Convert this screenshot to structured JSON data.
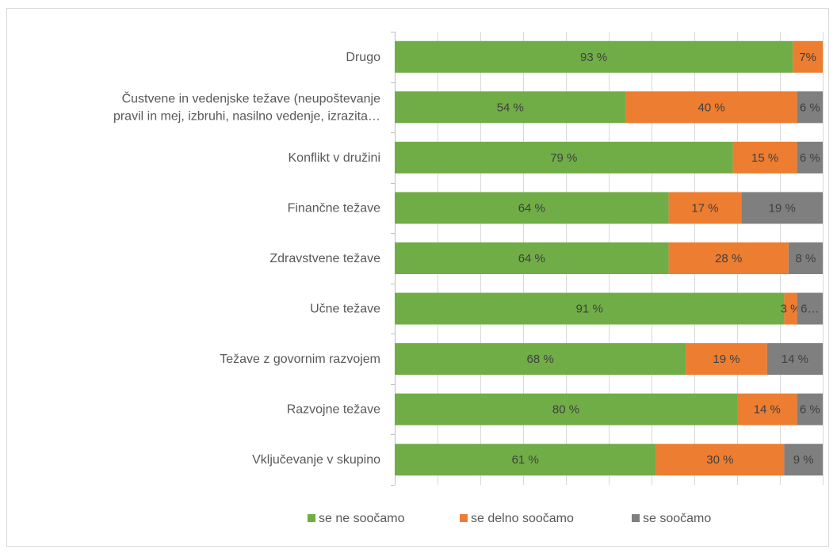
{
  "chart_data": {
    "type": "bar",
    "orientation": "horizontal",
    "stacked": "percent",
    "categories": [
      "Drugo",
      "Čustvene in vedenjske težave (neupoštevanje pravil in mej, izbruhi, nasilno vedenje, izrazita…",
      "Konflikt v družini",
      "Finančne težave",
      "Zdravstvene težave",
      "Učne težave",
      "Težave z govornim razvojem",
      "Razvojne težave",
      "Vključevanje v skupino"
    ],
    "category_lines": [
      [
        "Drugo"
      ],
      [
        "Čustvene in vedenjske težave (neupoštevanje",
        "pravil in mej, izbruhi, nasilno vedenje, izrazita…"
      ],
      [
        "Konflikt v družini"
      ],
      [
        "Finančne težave"
      ],
      [
        "Zdravstvene težave"
      ],
      [
        "Učne težave"
      ],
      [
        "Težave z govornim razvojem"
      ],
      [
        "Razvojne težave"
      ],
      [
        "Vključevanje v skupino"
      ]
    ],
    "series": [
      {
        "name": "se ne soočamo",
        "color": "#70ad47",
        "values": [
          93,
          54,
          79,
          64,
          64,
          91,
          68,
          80,
          61
        ],
        "labels": [
          "93 %",
          "54 %",
          "79 %",
          "64 %",
          "64 %",
          "91 %",
          "68 %",
          "80 %",
          "61 %"
        ]
      },
      {
        "name": "se delno soočamo",
        "color": "#ed7d31",
        "values": [
          7,
          40,
          15,
          17,
          28,
          3,
          19,
          14,
          30
        ],
        "labels": [
          "7%",
          "40 %",
          "15 %",
          "17 %",
          "28 %",
          "3 %",
          "19 %",
          "14 %",
          "30 %"
        ]
      },
      {
        "name": "se soočamo",
        "color": "#7f7f7f",
        "values": [
          0,
          6,
          6,
          19,
          8,
          6,
          14,
          6,
          9
        ],
        "labels": [
          "",
          "6 %",
          "6 %",
          "19 %",
          "8 %",
          "6…",
          "14 %",
          "6 %",
          "9 %"
        ]
      }
    ],
    "xlim": [
      0,
      100
    ],
    "grid": true,
    "legend_position": "bottom"
  }
}
